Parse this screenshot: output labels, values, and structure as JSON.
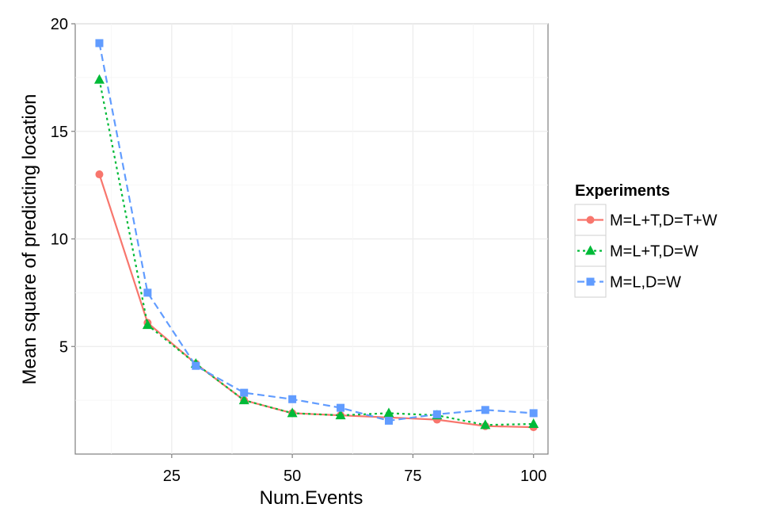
{
  "chart_data": {
    "type": "line",
    "title": "",
    "xlabel": "Num.Events",
    "ylabel": "Mean square of predicting location",
    "xlim": [
      5,
      103
    ],
    "ylim": [
      0,
      20
    ],
    "xticks": [
      25,
      50,
      75,
      100
    ],
    "yticks": [
      5,
      10,
      15,
      20
    ],
    "grid": true,
    "legend": {
      "title": "Experiments",
      "position": "right"
    },
    "x": [
      10,
      20,
      30,
      40,
      50,
      60,
      70,
      80,
      90,
      100
    ],
    "series": [
      {
        "name": "M=L+T,D=T+W",
        "color": "#F8766D",
        "marker": "circle",
        "dash": "solid",
        "values": [
          13.0,
          6.1,
          4.2,
          2.5,
          1.9,
          1.8,
          1.7,
          1.6,
          1.3,
          1.25
        ]
      },
      {
        "name": "M=L+T,D=W",
        "color": "#00BA38",
        "marker": "triangle",
        "dash": "dotted",
        "values": [
          17.4,
          6.0,
          4.2,
          2.5,
          1.9,
          1.8,
          1.9,
          1.8,
          1.35,
          1.4
        ]
      },
      {
        "name": "M=L,D=W",
        "color": "#619CFF",
        "marker": "square",
        "dash": "dashed",
        "values": [
          19.1,
          7.5,
          4.1,
          2.85,
          2.55,
          2.15,
          1.55,
          1.85,
          2.05,
          1.9
        ]
      }
    ]
  }
}
